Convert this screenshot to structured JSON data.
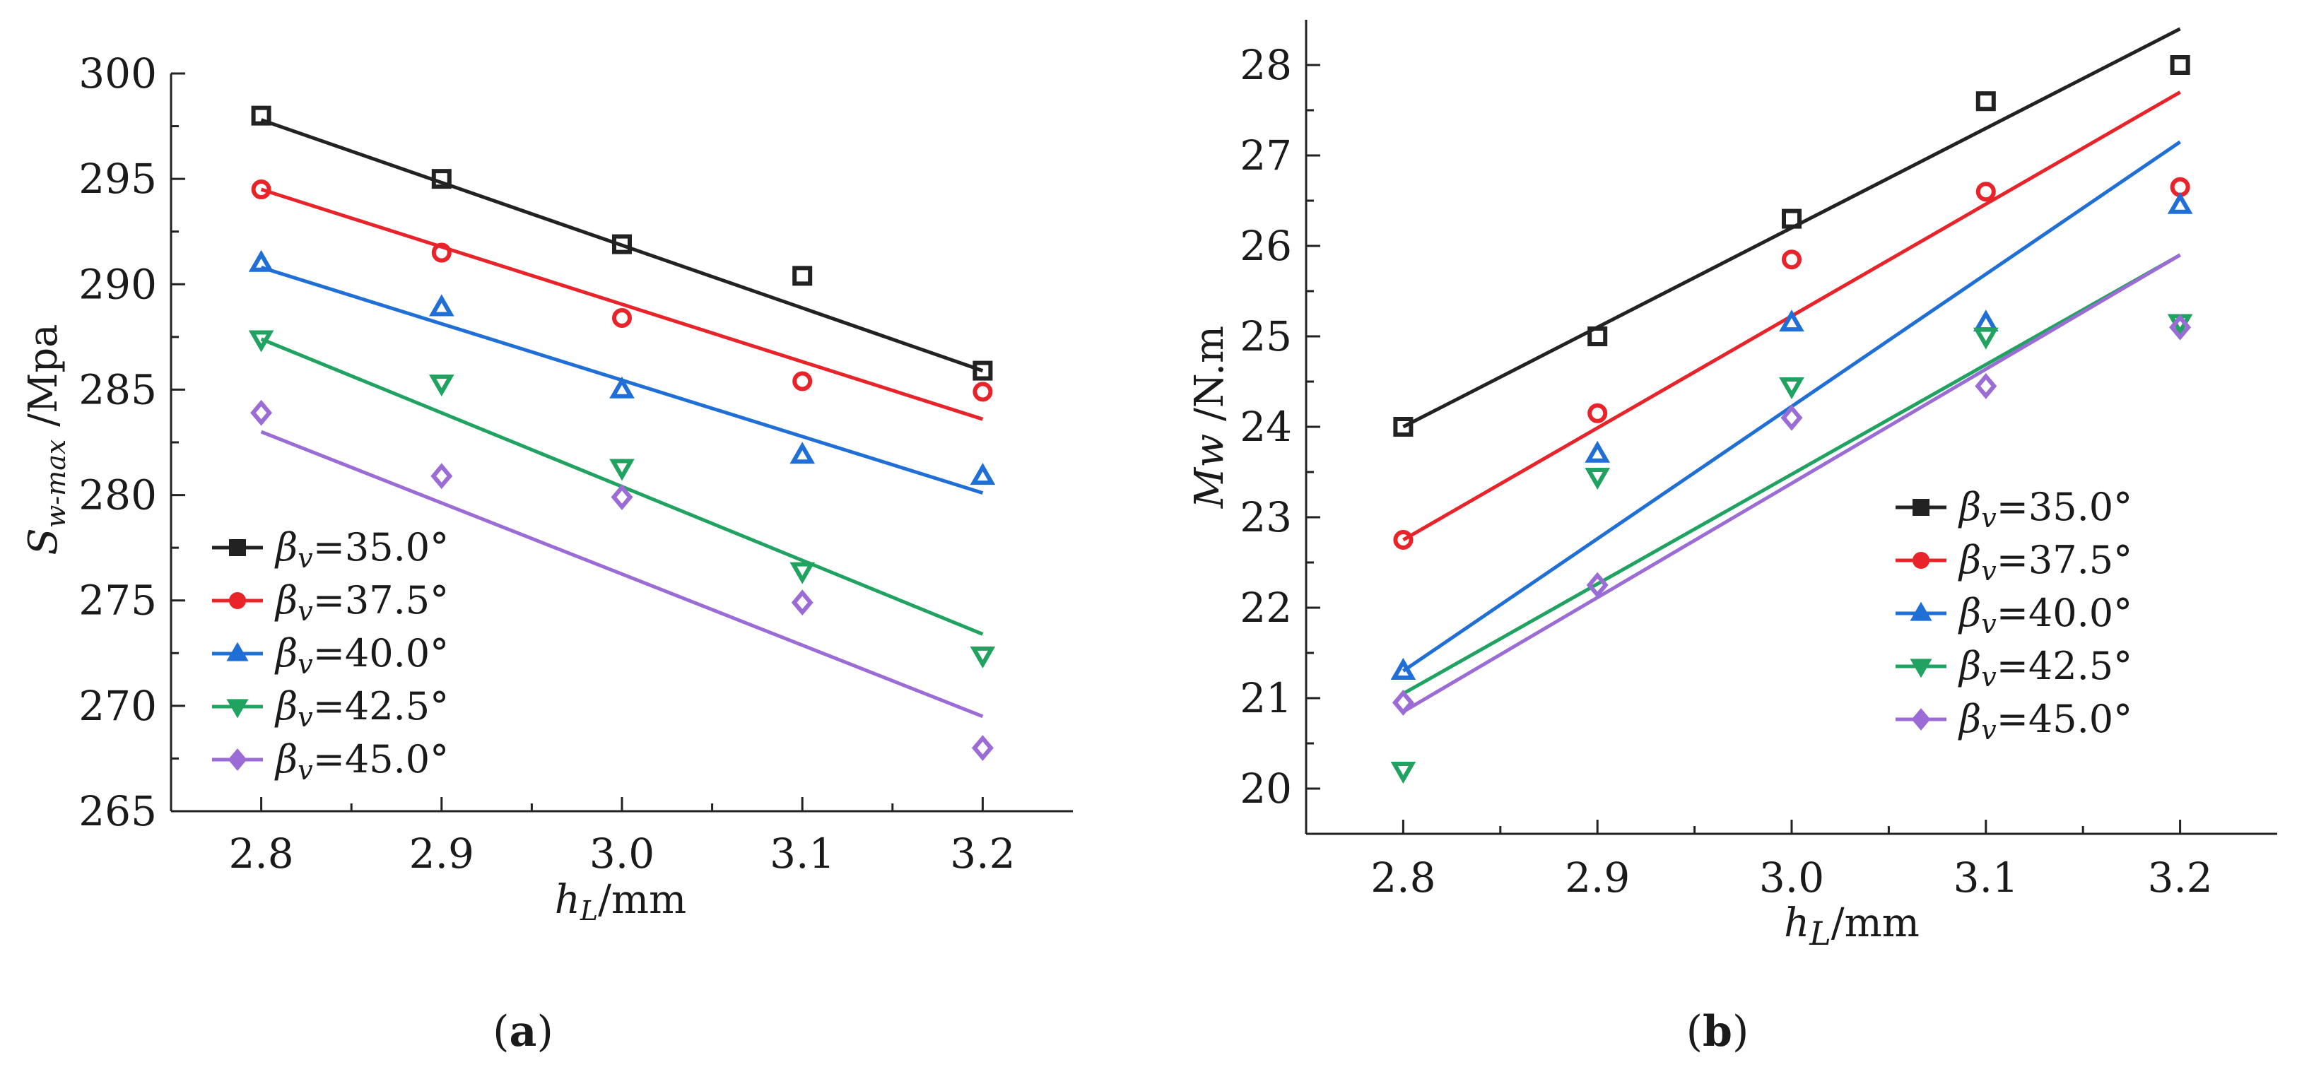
{
  "chart_data": [
    {
      "type": "scatter",
      "panel": "(a)",
      "panel_letter": "a",
      "title": "",
      "xlabel": "h_L/mm",
      "ylabel": "S_w-max /Mpa",
      "x_axis_label": {
        "var": "h",
        "sub": "L",
        "rest": "/mm"
      },
      "y_axis_label": {
        "var": "S",
        "sub": "w-max",
        "rest": " /Mpa"
      },
      "x": [
        2.8,
        2.9,
        3.0,
        3.1,
        3.2
      ],
      "xlim": [
        2.75,
        3.25
      ],
      "ylim": [
        265,
        300
      ],
      "x_ticks": [
        "2.8",
        "2.9",
        "3.0",
        "3.1",
        "3.2"
      ],
      "y_ticks": [
        "265",
        "270",
        "275",
        "280",
        "285",
        "290",
        "295",
        "300"
      ],
      "legend_position": "bottom-left",
      "series": [
        {
          "name": "βv=35.0°",
          "label_sym": "β",
          "label_sub": "v",
          "label_val": "=35.0°",
          "color": "#222222",
          "marker": "square",
          "values": [
            298.0,
            295.0,
            291.9,
            290.4,
            285.9
          ],
          "fit": [
            297.8,
            285.9
          ]
        },
        {
          "name": "βv=37.5°",
          "label_sym": "β",
          "label_sub": "v",
          "label_val": "=37.5°",
          "color": "#e8242a",
          "marker": "circle",
          "values": [
            294.5,
            291.5,
            288.4,
            285.4,
            284.9
          ],
          "fit": [
            294.5,
            283.6
          ]
        },
        {
          "name": "βv=40.0°",
          "label_sym": "β",
          "label_sub": "v",
          "label_val": "=40.0°",
          "color": "#1f6fd6",
          "marker": "triangle-up",
          "values": [
            291.0,
            288.9,
            285.0,
            281.9,
            280.9
          ],
          "fit": [
            290.8,
            280.1
          ]
        },
        {
          "name": "βv=42.5°",
          "label_sym": "β",
          "label_sub": "v",
          "label_val": "=42.5°",
          "color": "#20a360",
          "marker": "triangle-down",
          "values": [
            287.4,
            285.3,
            281.3,
            276.4,
            272.4
          ],
          "fit": [
            287.4,
            273.4
          ]
        },
        {
          "name": "βv=45.0°",
          "label_sym": "β",
          "label_sub": "v",
          "label_val": "=45.0°",
          "color": "#9b6bd6",
          "marker": "diamond",
          "values": [
            283.9,
            280.9,
            279.9,
            274.9,
            268.0
          ],
          "fit": [
            283.0,
            269.5
          ]
        }
      ]
    },
    {
      "type": "scatter",
      "panel": "(b)",
      "panel_letter": "b",
      "title": "",
      "xlabel": "h_L/mm",
      "ylabel": "Mw /N.m",
      "x_axis_label": {
        "var": "h",
        "sub": "L",
        "rest": "/mm"
      },
      "y_axis_label": {
        "var": "Mw",
        "sub": "",
        "rest": " /N.m"
      },
      "x": [
        2.8,
        2.9,
        3.0,
        3.1,
        3.2
      ],
      "xlim": [
        2.75,
        3.25
      ],
      "ylim": [
        19.5,
        28.5
      ],
      "x_ticks": [
        "2.8",
        "2.9",
        "3.0",
        "3.1",
        "3.2"
      ],
      "y_ticks": [
        "20",
        "21",
        "22",
        "23",
        "24",
        "25",
        "26",
        "27",
        "28"
      ],
      "legend_position": "right",
      "series": [
        {
          "name": "βv=35.0°",
          "label_sym": "β",
          "label_sub": "v",
          "label_val": "=35.0°",
          "color": "#222222",
          "marker": "square",
          "values": [
            24.0,
            25.0,
            26.3,
            27.6,
            28.0
          ],
          "fit": [
            24.0,
            28.4
          ]
        },
        {
          "name": "βv=37.5°",
          "label_sym": "β",
          "label_sub": "v",
          "label_val": "=37.5°",
          "color": "#e8242a",
          "marker": "circle",
          "values": [
            22.75,
            24.15,
            25.85,
            26.6,
            26.65
          ],
          "fit": [
            22.75,
            27.7
          ]
        },
        {
          "name": "βv=40.0°",
          "label_sym": "β",
          "label_sub": "v",
          "label_val": "=40.0°",
          "color": "#1f6fd6",
          "marker": "triangle-up",
          "values": [
            21.3,
            23.7,
            25.15,
            25.15,
            26.45
          ],
          "fit": [
            21.3,
            27.15
          ]
        },
        {
          "name": "βv=42.5°",
          "label_sym": "β",
          "label_sub": "v",
          "label_val": "=42.5°",
          "color": "#20a360",
          "marker": "triangle-down",
          "values": [
            20.2,
            23.45,
            24.45,
            25.0,
            25.15
          ],
          "fit": [
            21.05,
            25.9
          ]
        },
        {
          "name": "βv=45.0°",
          "label_sym": "β",
          "label_sub": "v",
          "label_val": "=45.0°",
          "color": "#9b6bd6",
          "marker": "diamond",
          "values": [
            20.95,
            22.25,
            24.1,
            24.45,
            25.1
          ],
          "fit": [
            20.85,
            25.9
          ]
        }
      ]
    }
  ]
}
